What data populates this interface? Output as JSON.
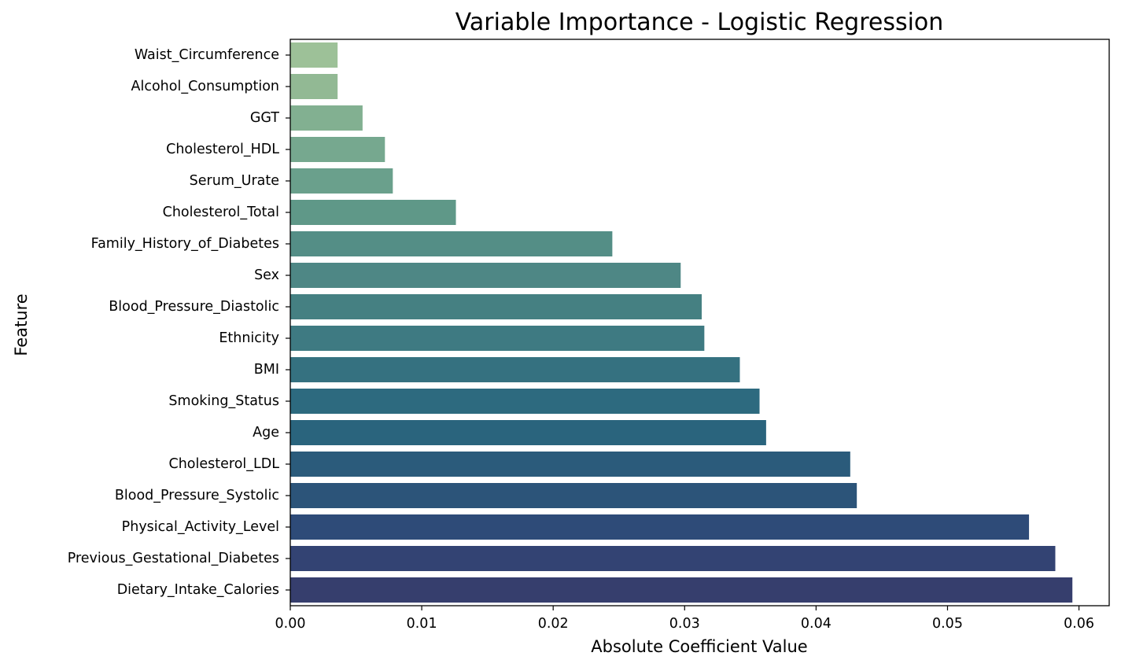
{
  "chart_data": {
    "type": "bar",
    "orientation": "horizontal",
    "title": "Variable Importance - Logistic Regression",
    "xlabel": "Absolute Coefficient Value",
    "ylabel": "Feature",
    "xlim": [
      0,
      0.0623
    ],
    "xticks": [
      0.0,
      0.01,
      0.02,
      0.03,
      0.04,
      0.05,
      0.06
    ],
    "xtick_labels": [
      "0.00",
      "0.01",
      "0.02",
      "0.03",
      "0.04",
      "0.05",
      "0.06"
    ],
    "grid": false,
    "legend": "none",
    "colormap": "crest",
    "categories": [
      "Waist_Circumference",
      "Alcohol_Consumption",
      "GGT",
      "Cholesterol_HDL",
      "Serum_Urate",
      "Cholesterol_Total",
      "Family_History_of_Diabetes",
      "Sex",
      "Blood_Pressure_Diastolic",
      "Ethnicity",
      "BMI",
      "Smoking_Status",
      "Age",
      "Cholesterol_LDL",
      "Blood_Pressure_Systolic",
      "Physical_Activity_Level",
      "Previous_Gestational_Diabetes",
      "Dietary_Intake_Calories"
    ],
    "values": [
      0.0036,
      0.0036,
      0.0055,
      0.0072,
      0.0078,
      0.0126,
      0.0245,
      0.0297,
      0.0313,
      0.0315,
      0.0342,
      0.0357,
      0.0362,
      0.0426,
      0.0431,
      0.0562,
      0.0582,
      0.0595
    ],
    "colors": [
      "#9dc198",
      "#92b994",
      "#82b091",
      "#76a88f",
      "#6aa08c",
      "#5f9888",
      "#548e86",
      "#4e8785",
      "#458082",
      "#3e7a82",
      "#357180",
      "#2d6a7f",
      "#2a647d",
      "#2b5b7b",
      "#2c5479",
      "#2e4b78",
      "#334373",
      "#363e6d"
    ]
  }
}
